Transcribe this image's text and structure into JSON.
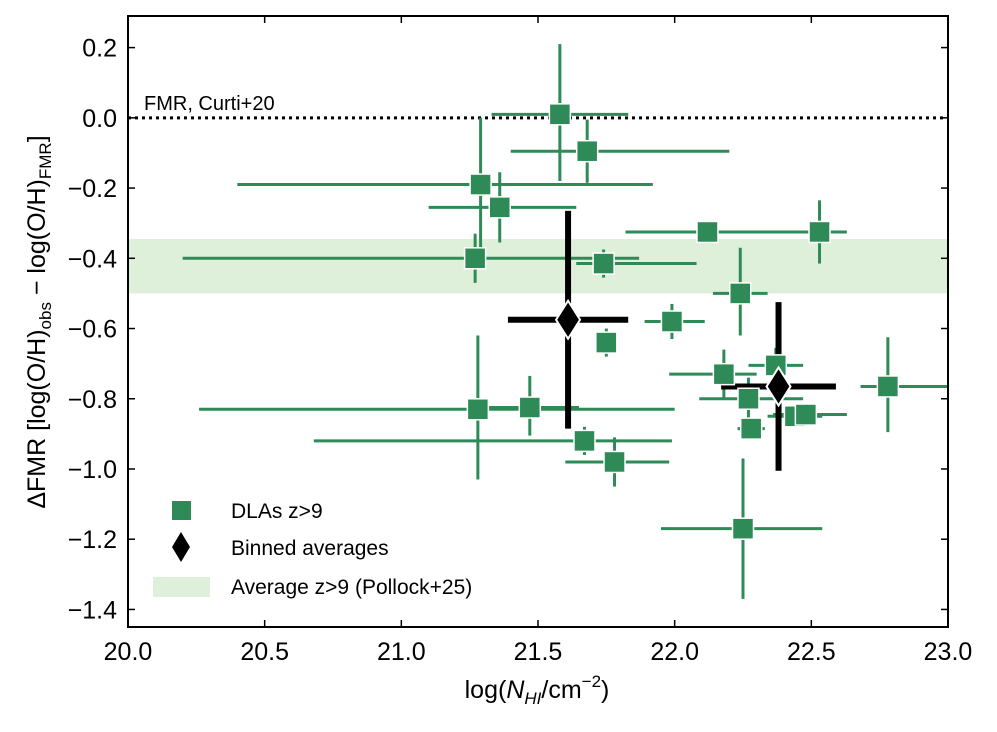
{
  "chart_data": {
    "type": "scatter",
    "xlabel_base": "log(",
    "xlabel_symbol": "N",
    "xlabel_symbol_sub": "HI",
    "xlabel_unit": "/cm",
    "xlabel_unit_exp": "−2",
    "xlabel_close": ")",
    "ylabel_prefix": "ΔFMR [log(O/H)",
    "ylabel_sub1": "obs",
    "ylabel_mid": " − log(O/H)",
    "ylabel_sub2": "FMR",
    "ylabel_suffix": "]",
    "xlim": [
      20.0,
      23.0
    ],
    "ylim": [
      -1.45,
      0.29
    ],
    "xticks": [
      20.0,
      20.5,
      21.0,
      21.5,
      22.0,
      22.5,
      23.0
    ],
    "xtick_labels": [
      "20.0",
      "20.5",
      "21.0",
      "21.5",
      "22.0",
      "22.5",
      "23.0"
    ],
    "yticks": [
      0.2,
      0.0,
      -0.2,
      -0.4,
      -0.6,
      -0.8,
      -1.0,
      -1.2,
      -1.4
    ],
    "ytick_labels": [
      "0.2",
      "0.0",
      "−0.2",
      "−0.4",
      "−0.6",
      "−0.8",
      "−1.0",
      "−1.2",
      "−1.4"
    ],
    "reference_line": {
      "y": 0.0,
      "label": "FMR, Curti+20",
      "style": "dotted"
    },
    "band": {
      "y_low": -0.5,
      "y_high": -0.345,
      "color": "#dff0da",
      "label": "Average z>9 (Pollock+25)"
    },
    "series": [
      {
        "name": "DLAs z>9",
        "marker": "square",
        "color": "#2e8b57",
        "points": [
          {
            "x": 21.58,
            "y": 0.01,
            "xerr": [
              0.25,
              0.25
            ],
            "yerr": [
              0.19,
              0.2
            ]
          },
          {
            "x": 21.68,
            "y": -0.095,
            "xerr": [
              0.28,
              0.52
            ],
            "yerr": [
              0.09,
              0.09
            ]
          },
          {
            "x": 21.29,
            "y": -0.19,
            "xerr": [
              0.89,
              0.63
            ],
            "yerr": [
              0.19,
              0.19
            ]
          },
          {
            "x": 21.36,
            "y": -0.255,
            "xerr": [
              0.26,
              0.28
            ],
            "yerr": [
              0.1,
              0.1
            ]
          },
          {
            "x": 21.27,
            "y": -0.4,
            "xerr": [
              1.07,
              0.6
            ],
            "yerr": [
              0.07,
              0.07
            ]
          },
          {
            "x": 21.74,
            "y": -0.415,
            "xerr": [
              0.1,
              0.34
            ],
            "yerr": [
              0.04,
              0.04
            ]
          },
          {
            "x": 22.12,
            "y": -0.325,
            "xerr": [
              0.3,
              0.35
            ],
            "yerr": [
              0.0,
              0.0
            ]
          },
          {
            "x": 22.53,
            "y": -0.325,
            "xerr": [
              0.07,
              0.1
            ],
            "yerr": [
              0.09,
              0.09
            ]
          },
          {
            "x": 22.24,
            "y": -0.5,
            "xerr": [
              0.1,
              0.1
            ],
            "yerr": [
              0.12,
              0.13
            ]
          },
          {
            "x": 21.99,
            "y": -0.58,
            "xerr": [
              0.1,
              0.12
            ],
            "yerr": [
              0.05,
              0.05
            ]
          },
          {
            "x": 21.75,
            "y": -0.64,
            "xerr": [
              0.03,
              0.03
            ],
            "yerr": [
              0.04,
              0.04
            ]
          },
          {
            "x": 22.18,
            "y": -0.73,
            "xerr": [
              0.2,
              0.12
            ],
            "yerr": [
              0.07,
              0.07
            ]
          },
          {
            "x": 22.27,
            "y": -0.8,
            "xerr": [
              0.18,
              0.2
            ],
            "yerr": [
              0.06,
              0.06
            ]
          },
          {
            "x": 22.37,
            "y": -0.705,
            "xerr": [
              0.1,
              0.1
            ],
            "yerr": [
              0.05,
              0.05
            ]
          },
          {
            "x": 22.28,
            "y": -0.885,
            "xerr": [
              0.05,
              0.05
            ],
            "yerr": [
              0.03,
              0.03
            ]
          },
          {
            "x": 22.44,
            "y": -0.85,
            "xerr": [
              0.1,
              0.1
            ],
            "yerr": [
              0.02,
              0.02
            ]
          },
          {
            "x": 22.48,
            "y": -0.845,
            "xerr": [
              0.12,
              0.15
            ],
            "yerr": [
              0.02,
              0.02
            ]
          },
          {
            "x": 22.78,
            "y": -0.765,
            "xerr": [
              0.1,
              0.22
            ],
            "yerr": [
              0.13,
              0.14
            ]
          },
          {
            "x": 21.28,
            "y": -0.83,
            "xerr": [
              1.02,
              0.72
            ],
            "yerr": [
              0.2,
              0.21
            ]
          },
          {
            "x": 21.47,
            "y": -0.825,
            "xerr": [
              0.2,
              0.18
            ],
            "yerr": [
              0.08,
              0.09
            ]
          },
          {
            "x": 21.67,
            "y": -0.92,
            "xerr": [
              0.99,
              0.32
            ],
            "yerr": [
              0.04,
              0.04
            ]
          },
          {
            "x": 21.78,
            "y": -0.98,
            "xerr": [
              0.18,
              0.2
            ],
            "yerr": [
              0.07,
              0.07
            ]
          },
          {
            "x": 22.25,
            "y": -1.17,
            "xerr": [
              0.3,
              0.29
            ],
            "yerr": [
              0.2,
              0.2
            ]
          }
        ]
      },
      {
        "name": "Binned averages",
        "marker": "diamond",
        "color": "#000000",
        "points": [
          {
            "x": 21.61,
            "y": -0.575,
            "xerr": [
              0.22,
              0.22
            ],
            "yerr": [
              0.31,
              0.31
            ]
          },
          {
            "x": 22.38,
            "y": -0.765,
            "xerr": [
              0.21,
              0.21
            ],
            "yerr": [
              0.24,
              0.24
            ]
          }
        ]
      }
    ],
    "legend": {
      "placement": "lower-left",
      "entries": [
        "DLAs z>9",
        "Binned averages",
        "Average z>9 (Pollock+25)"
      ]
    }
  }
}
